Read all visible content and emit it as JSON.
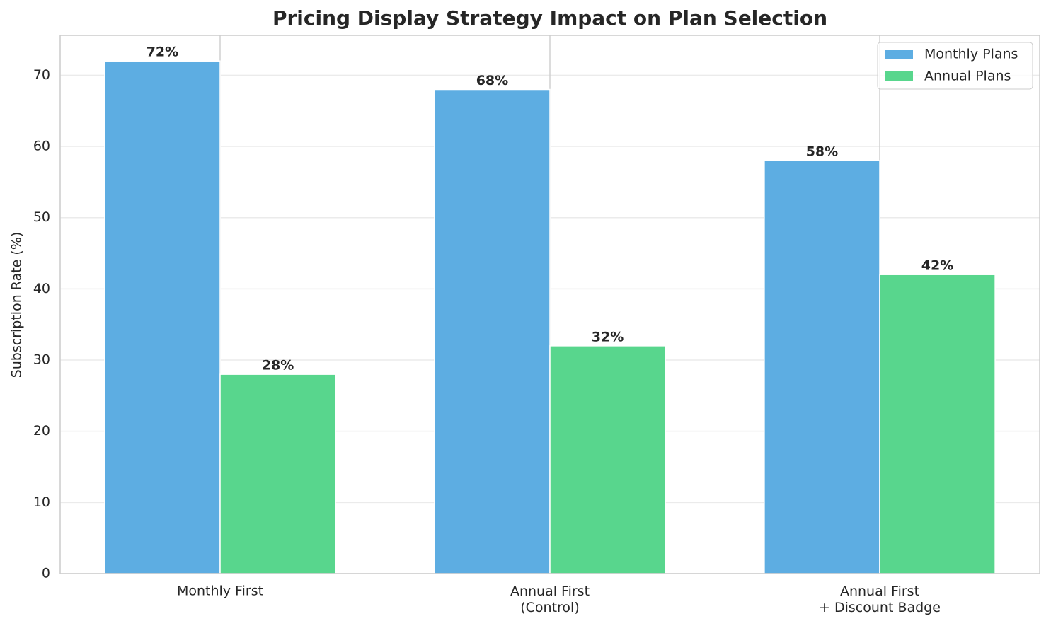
{
  "chart_data": {
    "type": "bar",
    "title": "Pricing Display Strategy Impact on Plan Selection",
    "ylabel": "Subscription Rate (%)",
    "categories": [
      "Monthly First",
      "Annual First\n(Control)",
      "Annual First\n+ Discount Badge"
    ],
    "series": [
      {
        "name": "Monthly Plans",
        "color": "#5dade2",
        "values": [
          72,
          68,
          58
        ],
        "value_labels": [
          "72%",
          "68%",
          "58%"
        ]
      },
      {
        "name": "Annual Plans",
        "color": "#58d68d",
        "values": [
          28,
          32,
          42
        ],
        "value_labels": [
          "28%",
          "32%",
          "42%"
        ]
      }
    ],
    "ylim": [
      0,
      75.6
    ],
    "yticks": [
      0,
      10,
      20,
      30,
      40,
      50,
      60,
      70
    ],
    "grid": true,
    "legend": "upper right"
  }
}
